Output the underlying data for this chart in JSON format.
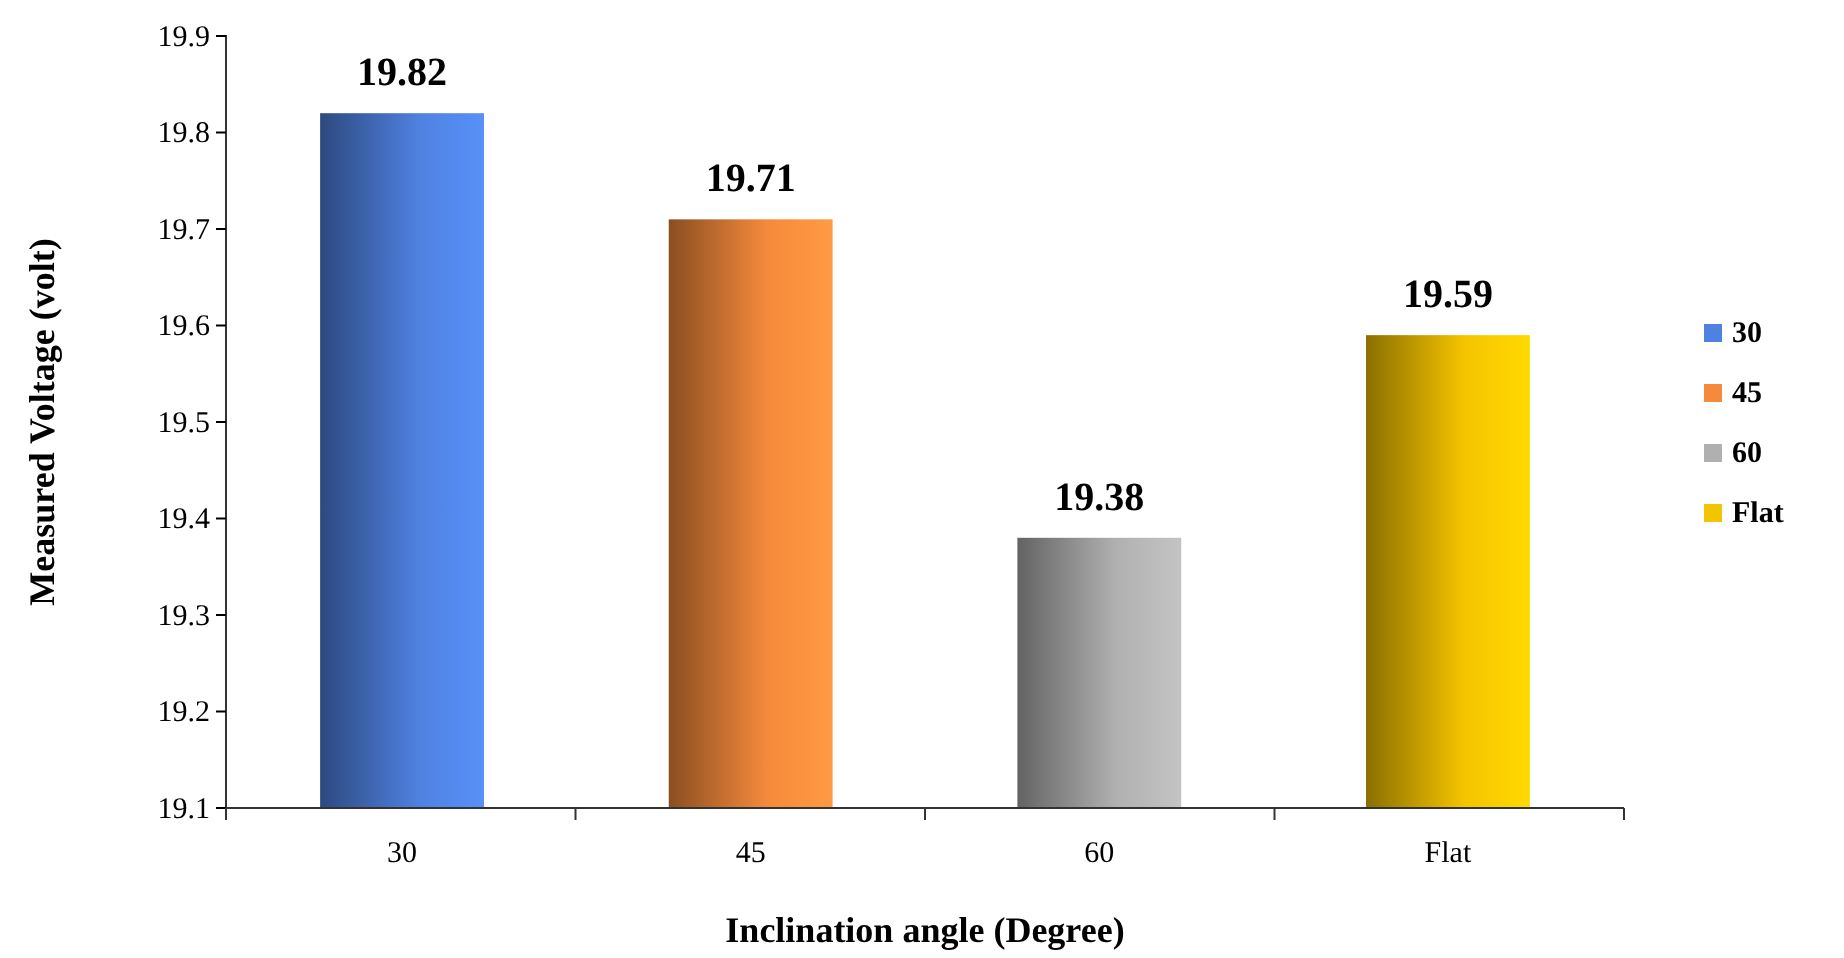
{
  "chart_data": {
    "type": "bar",
    "xlabel": "Inclination angle (Degree)",
    "ylabel": "Measured Voltage (volt)",
    "categories": [
      "30",
      "45",
      "60",
      "Flat"
    ],
    "series": [
      {
        "name": "30",
        "color": "#4f81e0",
        "values": [
          19.82,
          null,
          null,
          null
        ]
      },
      {
        "name": "45",
        "color": "#f58a3c",
        "values": [
          null,
          19.71,
          null,
          null
        ]
      },
      {
        "name": "60",
        "color": "#b0b0b0",
        "values": [
          null,
          null,
          19.38,
          null
        ]
      },
      {
        "name": "Flat",
        "color": "#f5c400",
        "values": [
          null,
          null,
          null,
          19.59
        ]
      }
    ],
    "ylim": [
      19.1,
      19.9
    ],
    "yticks": [
      19.1,
      19.2,
      19.3,
      19.4,
      19.5,
      19.6,
      19.7,
      19.8,
      19.9
    ],
    "data_labels": true,
    "legend": "right",
    "grid": false
  }
}
